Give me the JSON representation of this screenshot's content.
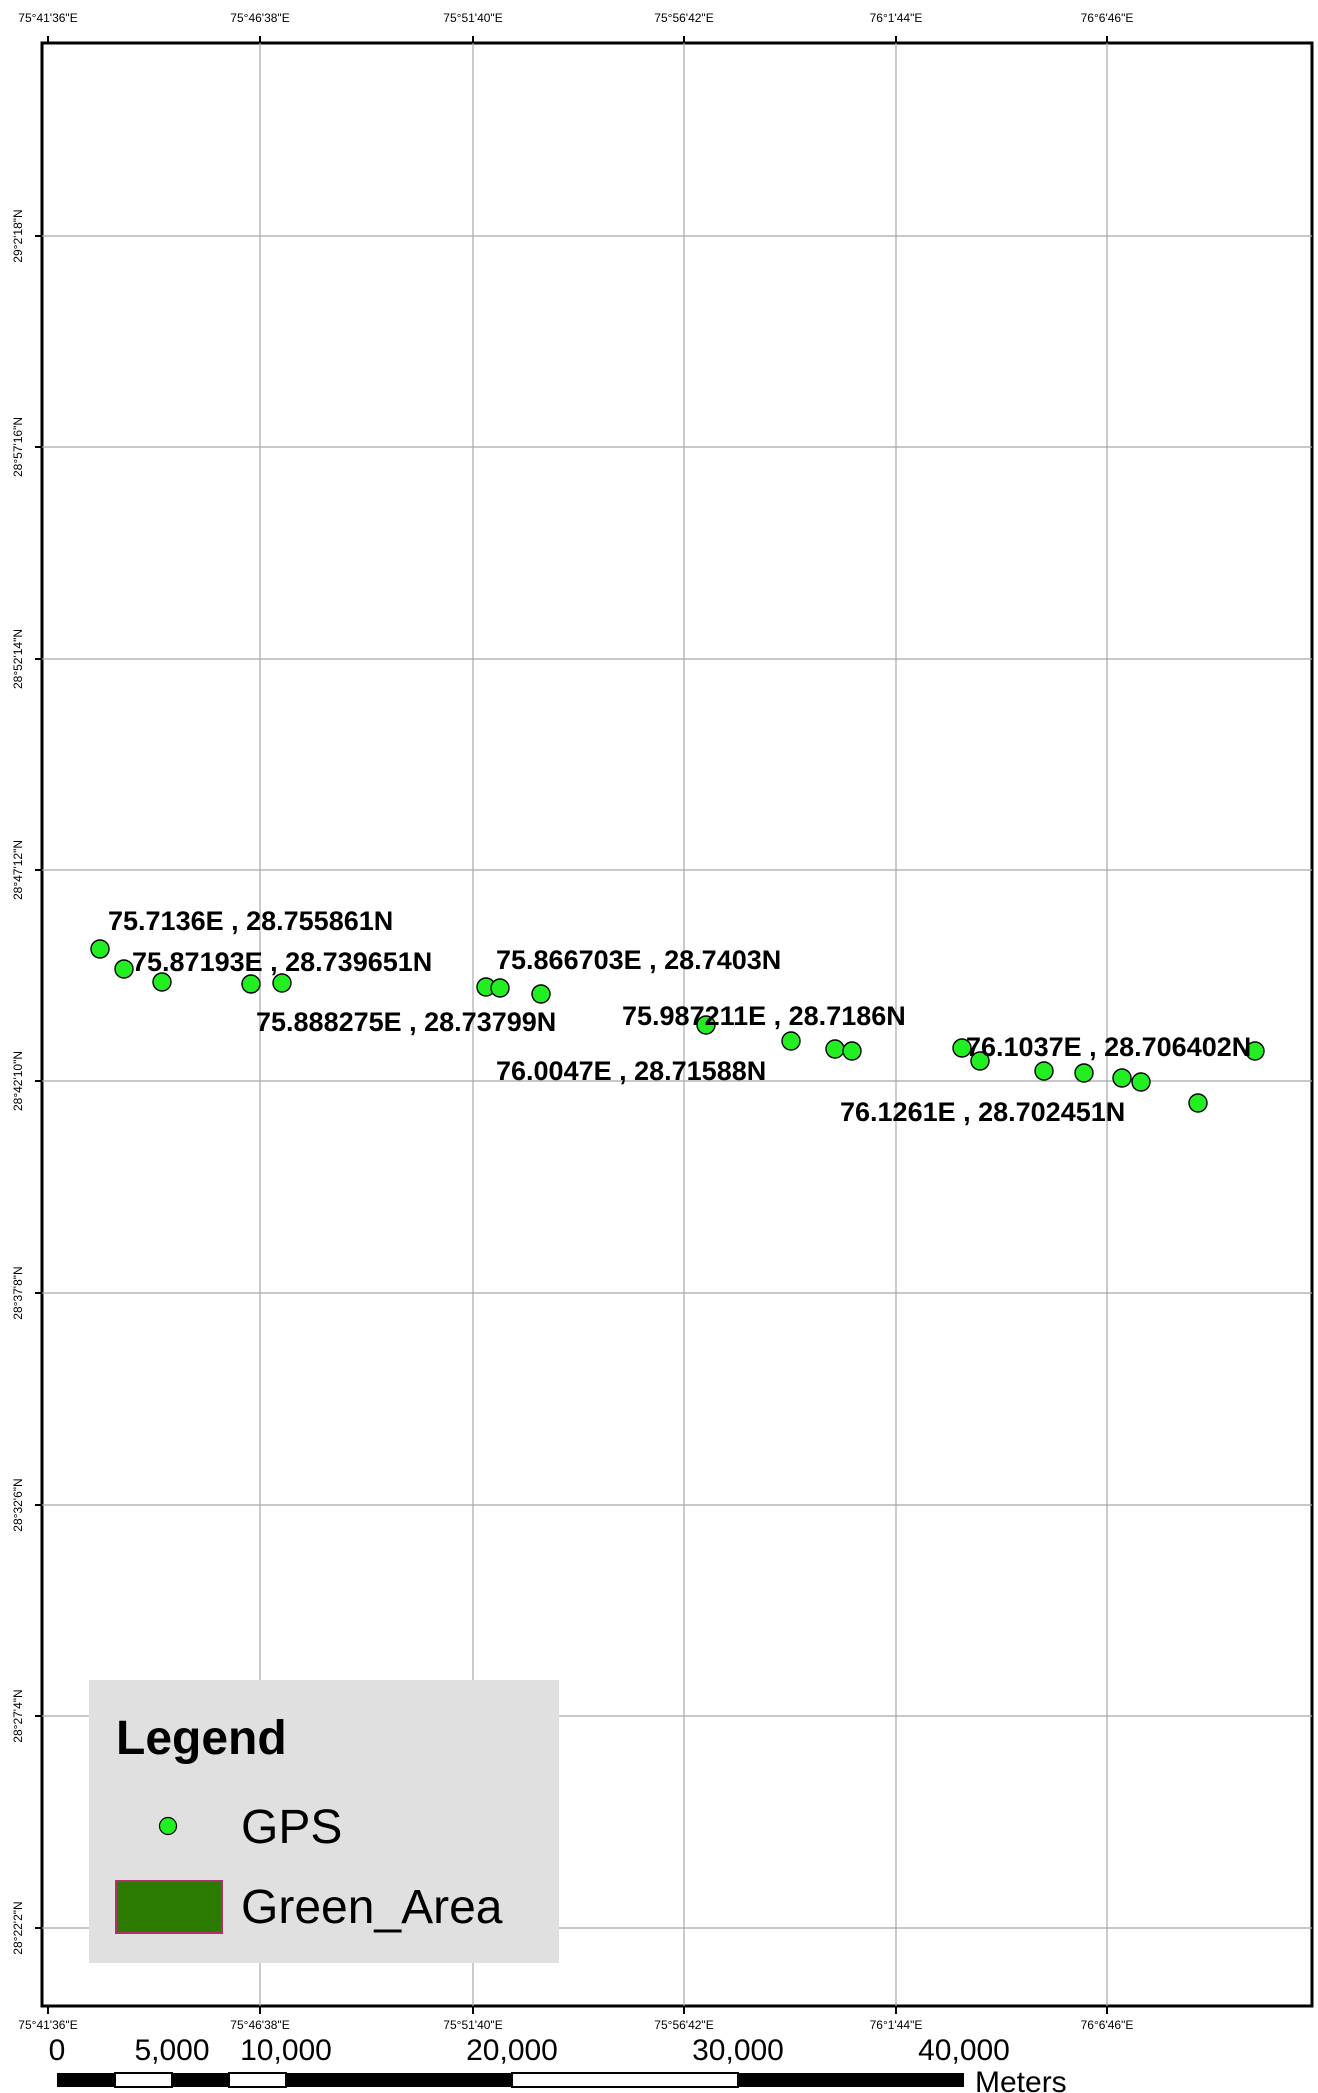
{
  "map": {
    "lon_labels": [
      "75°41'36\"E",
      "75°46'38\"E",
      "75°51'40\"E",
      "75°56'42\"E",
      "76°1'44\"E",
      "76°6'46\"E"
    ],
    "lat_labels": [
      "29°2'18\"N",
      "28°57'16\"N",
      "28°52'14\"N",
      "28°47'12\"N",
      "28°42'10\"N",
      "28°37'8\"N",
      "28°32'6\"N",
      "28°27'4\"N",
      "28°22'2\"N"
    ],
    "point_color": "#22ee22",
    "point_labels": [
      "75.7136E ,  28.755861N",
      "75.87193E ,  28.739651N",
      "75.866703E ,  28.7403N",
      "75.888275E ,  28.73799N",
      "75.987211E ,  28.7186N",
      "76.0047E ,  28.71588N",
      "76.1037E ,  28.706402N",
      "76.1261E ,  28.702451N"
    ]
  },
  "legend": {
    "title": "Legend",
    "items": [
      {
        "label": "GPS",
        "symbol": "point",
        "color": "#22ee22"
      },
      {
        "label": "Green_Area",
        "symbol": "polygon",
        "color": "#2a7b00",
        "outline": "#b0306e"
      }
    ]
  },
  "scale_bar": {
    "ticks": [
      "0",
      "5,000",
      "10,000",
      "20,000",
      "30,000",
      "40,000"
    ],
    "unit": "Meters"
  }
}
